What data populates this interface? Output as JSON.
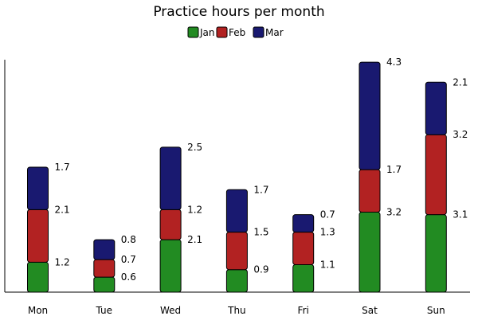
{
  "chart_data": {
    "type": "bar",
    "stacked": true,
    "title": "Practice hours per month",
    "xlabel": "",
    "ylabel": "",
    "categories": [
      "Mon",
      "Tue",
      "Wed",
      "Thu",
      "Fri",
      "Sat",
      "Sun"
    ],
    "series": [
      {
        "name": "Jan",
        "color": "#228B22",
        "values": [
          1.2,
          0.6,
          2.1,
          0.9,
          1.1,
          3.2,
          3.1
        ]
      },
      {
        "name": "Feb",
        "color": "#B22222",
        "values": [
          2.1,
          0.7,
          1.2,
          1.5,
          1.3,
          1.7,
          3.2
        ]
      },
      {
        "name": "Mar",
        "color": "#191970",
        "values": [
          1.7,
          0.8,
          2.5,
          1.7,
          0.7,
          4.3,
          2.1
        ]
      }
    ],
    "ylim": [
      0,
      9.3
    ],
    "grid": false,
    "legend_position": "top-center",
    "data_labels": true
  }
}
